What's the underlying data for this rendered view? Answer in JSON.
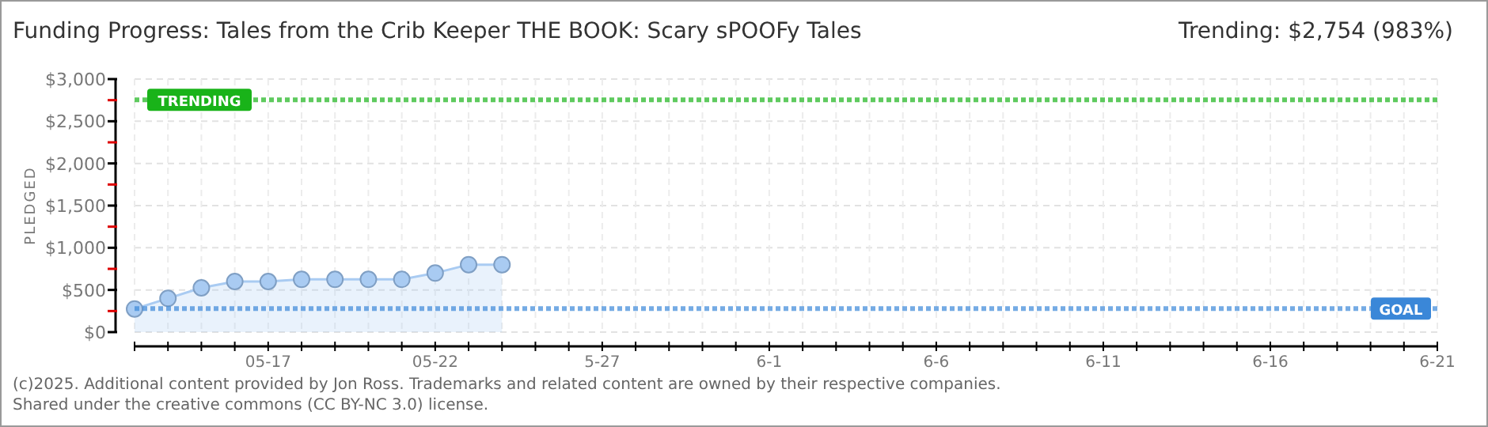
{
  "chart_data": {
    "type": "area",
    "title": "Funding Progress: Tales from the Crib Keeper THE BOOK: Scary sPOOFy Tales",
    "subtitle": "Trending:  $2,754 (983%)",
    "ylabel": "PLEDGED",
    "annotations": [
      "(c)2025. Additional content provided by Jon Ross. Trademarks and related content are owned by their respective companies.",
      "Shared under the creative commons (CC BY-NC 3.0) license."
    ],
    "x": [
      "--05-13",
      "--05-14",
      "--05-15",
      "--05-16",
      "--05-17",
      "--05-18",
      "--05-19",
      "--05-20",
      "--05-21",
      "--05-22",
      "--05-23",
      "--05-24"
    ],
    "series": [
      {
        "color": "#a9cbf2",
        "values": [
          275,
          400,
          525,
          600,
          600,
          625,
          625,
          625,
          625,
          700,
          800,
          800
        ]
      }
    ],
    "marker": "circle",
    "grid": true,
    "xlim": [
      "--05-13",
      "--06-21"
    ],
    "xticks": [
      {
        "value": "--05-13",
        "label": null
      },
      {
        "value": "--05-14",
        "label": null
      },
      {
        "value": "--05-15",
        "label": null
      },
      {
        "value": "--05-16",
        "label": null
      },
      {
        "value": "--05-17",
        "label": "05-17"
      },
      {
        "value": "--05-18",
        "label": null
      },
      {
        "value": "--05-19",
        "label": null
      },
      {
        "value": "--05-20",
        "label": null
      },
      {
        "value": "--05-21",
        "label": null
      },
      {
        "value": "--05-22",
        "label": "05-22"
      },
      {
        "value": "--05-23",
        "label": null
      },
      {
        "value": "--05-24",
        "label": null
      },
      {
        "value": "--05-25",
        "label": null
      },
      {
        "value": "--05-26",
        "label": null
      },
      {
        "value": "--05-27",
        "label": "5-27"
      },
      {
        "value": "--05-28",
        "label": null
      },
      {
        "value": "--05-29",
        "label": null
      },
      {
        "value": "--05-30",
        "label": null
      },
      {
        "value": "--05-31",
        "label": null
      },
      {
        "value": "--06-01",
        "label": "6-1"
      },
      {
        "value": "--06-02",
        "label": null
      },
      {
        "value": "--06-03",
        "label": null
      },
      {
        "value": "--06-04",
        "label": null
      },
      {
        "value": "--06-05",
        "label": null
      },
      {
        "value": "--06-06",
        "label": "6-6"
      },
      {
        "value": "--06-07",
        "label": null
      },
      {
        "value": "--06-08",
        "label": null
      },
      {
        "value": "--06-09",
        "label": null
      },
      {
        "value": "--06-10",
        "label": null
      },
      {
        "value": "--06-11",
        "label": "6-11"
      },
      {
        "value": "--06-12",
        "label": null
      },
      {
        "value": "--06-13",
        "label": null
      },
      {
        "value": "--06-14",
        "label": null
      },
      {
        "value": "--06-15",
        "label": null
      },
      {
        "value": "--06-16",
        "label": "6-16"
      },
      {
        "value": "--06-17",
        "label": null
      },
      {
        "value": "--06-18",
        "label": null
      },
      {
        "value": "--06-19",
        "label": null
      },
      {
        "value": "--06-20",
        "label": null
      },
      {
        "value": "--06-21",
        "label": "6-21"
      }
    ],
    "ylim": [
      0,
      3000
    ],
    "yticks": [
      {
        "value": 0,
        "label": "$0"
      },
      {
        "value": 250,
        "label": null
      },
      {
        "value": 500,
        "label": "$500"
      },
      {
        "value": 750,
        "label": null
      },
      {
        "value": 1000,
        "label": "$1,000"
      },
      {
        "value": 1250,
        "label": null
      },
      {
        "value": 1500,
        "label": "$1,500"
      },
      {
        "value": 1750,
        "label": null
      },
      {
        "value": 2000,
        "label": "$2,000"
      },
      {
        "value": 2250,
        "label": null
      },
      {
        "value": 2500,
        "label": "$2,500"
      },
      {
        "value": 2750,
        "label": null
      },
      {
        "value": 3000,
        "label": "$3,000"
      }
    ],
    "ref_lines": [
      {
        "axis": "y",
        "value": 2754,
        "label": "TRENDING",
        "color": "#19b319",
        "line_style": "dotted"
      },
      {
        "axis": "y",
        "value": 280,
        "label": "GOAL",
        "color": "#3a87d8",
        "line_style": "dotted"
      }
    ]
  }
}
